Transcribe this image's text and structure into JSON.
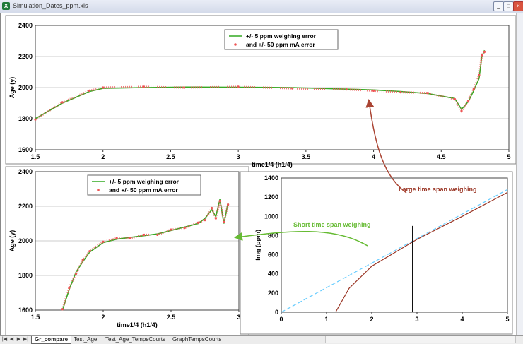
{
  "window": {
    "title": "Simulation_Dates_ppm.xls",
    "icon": "excel-icon"
  },
  "tabs": [
    "Gr_compare",
    "Test_Age",
    "Test_Age_TempsCourts",
    "GraphTempsCourts"
  ],
  "active_tab": "Gr_compare",
  "chart_data": [
    {
      "type": "line",
      "xlabel": "time1/4 (h1/4)",
      "ylabel": "Age (y)",
      "xlim": [
        1.5,
        5
      ],
      "ylim": [
        1600,
        2400
      ],
      "xticks": [
        "1.5",
        "2",
        "2.5",
        "3",
        "3.5",
        "4",
        "4.5",
        "5"
      ],
      "yticks": [
        "1600",
        "1800",
        "2000",
        "2200",
        "2400"
      ],
      "legend": {
        "placement": "top-center",
        "entries": [
          "+/- 5 ppm weighing error",
          "and +/- 50 ppm mA error"
        ]
      },
      "series": [
        {
          "name": "+/- 5 ppm weighing error",
          "color": "#33aa22",
          "x": [
            1.5,
            1.7,
            1.9,
            2.0,
            2.3,
            2.6,
            3.0,
            3.4,
            3.8,
            4.0,
            4.2,
            4.4,
            4.6,
            4.65,
            4.7,
            4.74,
            4.78,
            4.8,
            4.82
          ],
          "y": [
            1800,
            1900,
            1975,
            1995,
            2000,
            2003,
            2002,
            2000,
            1990,
            1985,
            1975,
            1962,
            1930,
            1860,
            1910,
            1980,
            2060,
            2200,
            2240
          ]
        },
        {
          "name": "and +/- 50 ppm mA error",
          "color": "#ee5555",
          "x": [
            1.5,
            1.7,
            1.9,
            2.0,
            2.3,
            2.6,
            3.0,
            3.4,
            3.8,
            4.0,
            4.2,
            4.4,
            4.6,
            4.65,
            4.7,
            4.74,
            4.78,
            4.8,
            4.82
          ],
          "y": [
            1795,
            1905,
            1980,
            2000,
            2005,
            2000,
            2005,
            1995,
            1988,
            1980,
            1970,
            1965,
            1925,
            1850,
            1915,
            1990,
            2080,
            2210,
            2230
          ]
        }
      ]
    },
    {
      "type": "line",
      "xlabel": "time1/4 (h1/4)",
      "ylabel": "Age (y)",
      "xlim": [
        1.5,
        3
      ],
      "ylim": [
        1600,
        2400
      ],
      "xticks": [
        "1.5",
        "2",
        "2.5",
        "3"
      ],
      "yticks": [
        "1600",
        "1800",
        "2000",
        "2200",
        "2400"
      ],
      "legend": {
        "placement": "top-center",
        "entries": [
          "+/- 5 ppm weighing error",
          "and +/- 50 ppm mA error"
        ]
      },
      "series": [
        {
          "name": "+/- 5 ppm weighing error",
          "color": "#33aa22",
          "x": [
            1.7,
            1.75,
            1.8,
            1.85,
            1.9,
            2.0,
            2.1,
            2.2,
            2.3,
            2.4,
            2.5,
            2.6,
            2.7,
            2.75,
            2.8,
            2.83,
            2.86,
            2.89,
            2.92
          ],
          "y": [
            1600,
            1720,
            1820,
            1880,
            1935,
            1990,
            2010,
            2020,
            2030,
            2040,
            2060,
            2080,
            2100,
            2130,
            2180,
            2140,
            2240,
            2100,
            2220
          ]
        },
        {
          "name": "and +/- 50 ppm mA error",
          "color": "#ee5555",
          "x": [
            1.7,
            1.75,
            1.8,
            1.85,
            1.9,
            2.0,
            2.1,
            2.2,
            2.3,
            2.4,
            2.5,
            2.6,
            2.7,
            2.75,
            2.8,
            2.83,
            2.86,
            2.89,
            2.92
          ],
          "y": [
            1605,
            1730,
            1810,
            1890,
            1940,
            1995,
            2015,
            2015,
            2035,
            2035,
            2065,
            2075,
            2105,
            2120,
            2190,
            2130,
            2230,
            2110,
            2210
          ]
        }
      ]
    },
    {
      "type": "line",
      "xlabel": "",
      "ylabel": "fmg (ppm)",
      "xlim": [
        0,
        5
      ],
      "ylim": [
        0,
        1400
      ],
      "xticks": [
        "0",
        "1",
        "2",
        "3",
        "4",
        "5"
      ],
      "yticks": [
        "0",
        "200",
        "400",
        "600",
        "800",
        "1000",
        "1200",
        "1400"
      ],
      "annotations": [
        "Short time span weighing",
        "Large time span weighing"
      ],
      "series": [
        {
          "name": "",
          "color": "#66ccff",
          "x": [
            0,
            5
          ],
          "y": [
            0,
            1280
          ]
        },
        {
          "name": "",
          "color": "#993322",
          "x": [
            1.2,
            1.5,
            2.0,
            3.0,
            4.0,
            5.0
          ],
          "y": [
            0,
            250,
            480,
            760,
            1000,
            1250
          ]
        },
        {
          "name": "",
          "color": "#111111",
          "x": [
            2.9,
            2.9
          ],
          "y": [
            0,
            900
          ]
        }
      ]
    }
  ],
  "icons": {
    "minimize": "minimize-icon",
    "maximize": "maximize-icon",
    "close": "close-icon"
  }
}
